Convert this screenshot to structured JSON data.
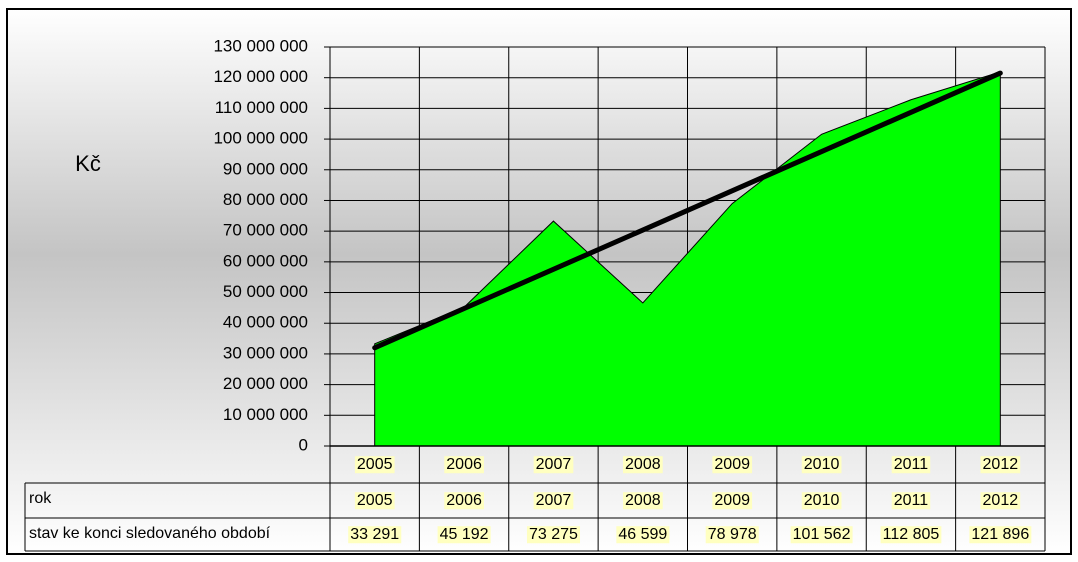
{
  "chart_data": {
    "type": "area",
    "y_label": "Kč",
    "categories": [
      "2005",
      "2006",
      "2007",
      "2008",
      "2009",
      "2010",
      "2011",
      "2012"
    ],
    "values": [
      33291000,
      45192000,
      73275000,
      46599000,
      78978000,
      101562000,
      112805000,
      121896000
    ],
    "color": "#00ff00",
    "trend": [
      32000000,
      121500000
    ],
    "trend_color": "#000000",
    "ylim": [
      0,
      130000000
    ],
    "yticks": [
      0,
      {
        "value": 10000000,
        "label": "10 000 000"
      },
      {
        "value": 20000000,
        "label": "20 000 000"
      },
      {
        "value": 30000000,
        "label": "30 000 000"
      },
      {
        "value": 40000000,
        "label": "40 000 000"
      },
      {
        "value": 50000000,
        "label": "50 000 000"
      },
      {
        "value": 60000000,
        "label": "60 000 000"
      },
      {
        "value": 70000000,
        "label": "70 000 000"
      },
      {
        "value": 80000000,
        "label": "80 000 000"
      },
      {
        "value": 90000000,
        "label": "90 000 000"
      },
      {
        "value": 100000000,
        "label": "100 000 000"
      },
      {
        "value": 110000000,
        "label": "110 000 000"
      },
      {
        "value": 120000000,
        "label": "120 000 000"
      },
      {
        "value": 130000000,
        "label": "130 000 000"
      }
    ],
    "grid": true,
    "table": {
      "row_labels": [
        "rok",
        "stav ke konci sledovaného období"
      ],
      "value_labels": [
        "33 291",
        "45 192",
        "73 275",
        "46 599",
        "78 978",
        "101 562",
        "112 805",
        "121 896"
      ]
    }
  }
}
